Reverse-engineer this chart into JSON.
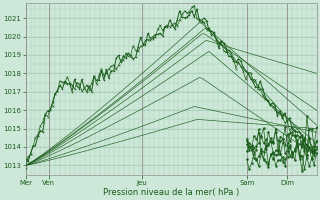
{
  "xlabel": "Pression niveau de la mer( hPa )",
  "ylim": [
    1012.5,
    1021.8
  ],
  "yticks": [
    1013,
    1014,
    1015,
    1016,
    1017,
    1018,
    1019,
    1020,
    1021
  ],
  "bg_color": "#cde8d8",
  "grid_color": "#a8ccb8",
  "line_color": "#1a5c1a",
  "xtick_labels": [
    "Mer",
    "Ven",
    "Jeu",
    "Sam",
    "Dim"
  ],
  "xtick_positions": [
    0.0,
    0.08,
    0.4,
    0.76,
    0.9
  ]
}
